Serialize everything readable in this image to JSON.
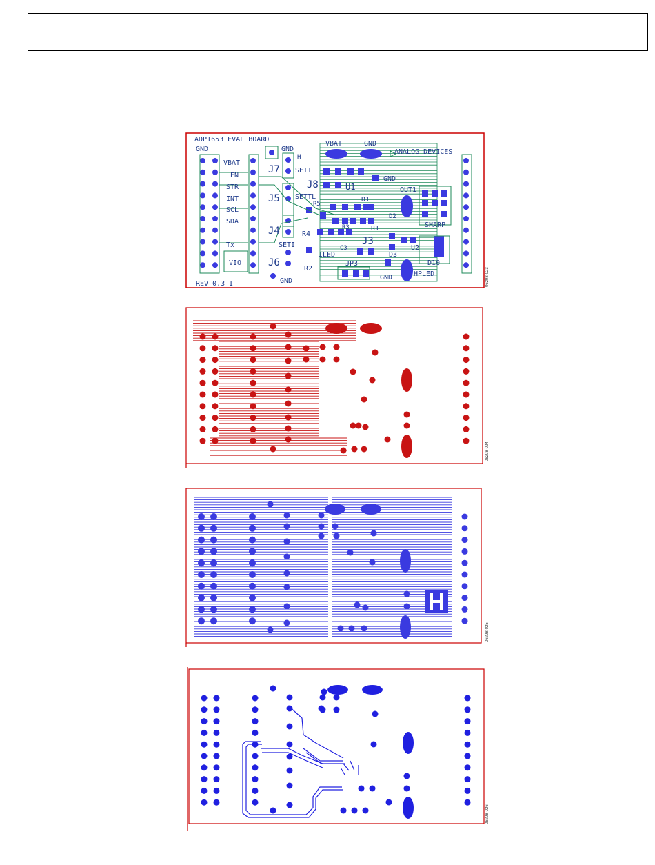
{
  "header": {
    "text": ""
  },
  "figures": [
    {
      "id": "06298-023",
      "layer": "silkscreen",
      "labels": {
        "board_title": "ADP1653 EVAL BOARD",
        "rev": "REV 0.3 I",
        "gnd_top_left": "GND",
        "vbat": "VBAT",
        "en": "EN",
        "str": "STR",
        "int": "INT",
        "scl": "SCL",
        "sda": "SDA",
        "tx": "Tx",
        "vio": "VIO",
        "j7": "J7",
        "j5": "J5",
        "j4": "J4",
        "j6": "J6",
        "j8": "J8",
        "j3": "J3",
        "jp3": "JP3",
        "u1": "U1",
        "gnd_j7": "GND",
        "gnd_j6": "GND",
        "h": "H",
        "sett_upper": "SETT",
        "sett_mid": "SETTL",
        "set_lower": "SETI",
        "r4": "R4",
        "r2": "R2",
        "r5": "R5",
        "r1": "R1",
        "r3": "R3",
        "ileds": "ILED",
        "c3": "C3",
        "d1": "D1",
        "d2": "D2",
        "d3": "D3",
        "d10": "D10",
        "u2": "U2",
        "vbat_pad": "VBAT",
        "gnd_pad": "GND",
        "analog_devices": "ANALOG DEVICES",
        "gnd_right": "GND",
        "out1": "OUT1",
        "sharp": "SHARP",
        "hpled": "HPLED",
        "gnd_bottom": "GND"
      }
    },
    {
      "id": "06298-024",
      "layer": "top-copper"
    },
    {
      "id": "06298-025",
      "layer": "inner-ground"
    },
    {
      "id": "06298-026",
      "layer": "bottom-copper"
    }
  ],
  "colors": {
    "border": "#cc0000",
    "silk_green": "#1e8a5a",
    "pad_blue": "#3a3ae0",
    "copper_red": "#c81414",
    "ground_blue": "#3a3ae0",
    "bottom_blue": "#2020e0"
  }
}
